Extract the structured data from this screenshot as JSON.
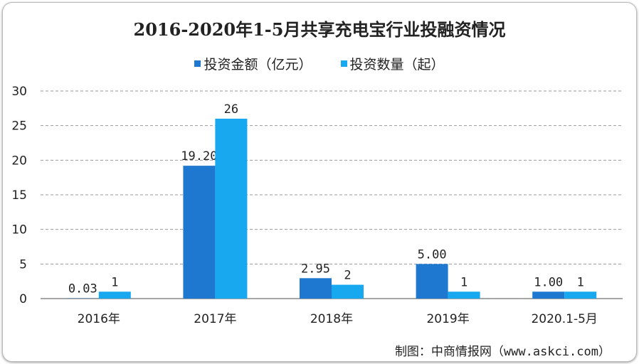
{
  "chart_data": {
    "type": "bar",
    "title": "2016-2020年1-5月共享充电宝行业投融资情况",
    "categories": [
      "2016年",
      "2017年",
      "2018年",
      "2019年",
      "2020.1-5月"
    ],
    "series": [
      {
        "name": "投资金额（亿元）",
        "color": "#1F78D0",
        "values": [
          0.03,
          19.2,
          2.95,
          5.0,
          1.0
        ],
        "labels": [
          "0.03",
          "19.20",
          "2.95",
          "5.00",
          "1.00"
        ]
      },
      {
        "name": "投资数量（起）",
        "color": "#17A8EF",
        "values": [
          1,
          26,
          2,
          1,
          1
        ],
        "labels": [
          "1",
          "26",
          "2",
          "1",
          "1"
        ]
      }
    ],
    "ylim": [
      0,
      30
    ],
    "yticks": [
      "0",
      "5",
      "10",
      "15",
      "20",
      "25",
      "30"
    ],
    "grid": true,
    "legend_position": "top",
    "source": "制图：中商情报网（www.askci.com）"
  }
}
